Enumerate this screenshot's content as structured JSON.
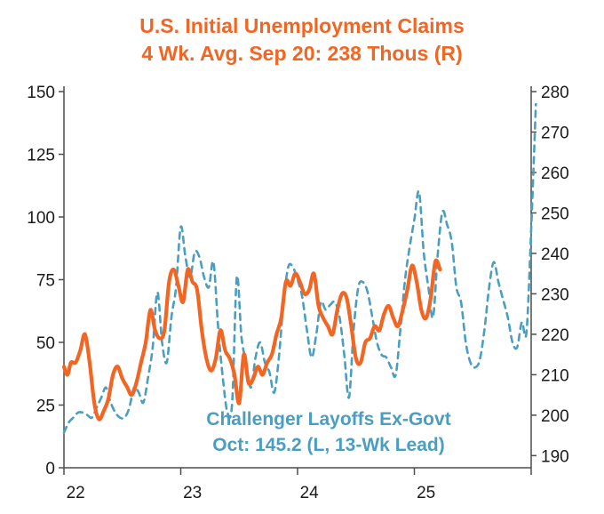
{
  "chart_data": {
    "type": "line",
    "title": "U.S. Initial Unemployment Claims",
    "subtitle": "4 Wk. Avg.  Sep 20: 238 Thous (R)",
    "annotation": {
      "line1": "Challenger Layoffs Ex-Govt",
      "line2": "Oct: 145.2 (L, 13-Wk Lead)"
    },
    "x_axis": {
      "ticks": [
        "22",
        "23",
        "24",
        "25"
      ],
      "xlim": [
        2022.0,
        2026.0
      ]
    },
    "y_left": {
      "ylim": [
        0,
        150
      ],
      "ticks": [
        0,
        25,
        50,
        75,
        100,
        125,
        150
      ]
    },
    "y_right": {
      "ylim": [
        187,
        280
      ],
      "ticks": [
        190,
        200,
        210,
        220,
        230,
        240,
        250,
        260,
        270,
        280
      ]
    },
    "series": [
      {
        "name": "Initial Unemployment Claims 4 Wk. Avg. (R)",
        "axis": "right",
        "color": "#f26522",
        "style": "solid",
        "x": [
          2022.0,
          2022.03,
          2022.06,
          2022.1,
          2022.14,
          2022.18,
          2022.22,
          2022.26,
          2022.3,
          2022.34,
          2022.38,
          2022.42,
          2022.46,
          2022.5,
          2022.54,
          2022.58,
          2022.62,
          2022.66,
          2022.7,
          2022.74,
          2022.78,
          2022.82,
          2022.86,
          2022.9,
          2022.94,
          2022.98,
          2023.02,
          2023.06,
          2023.1,
          2023.14,
          2023.18,
          2023.22,
          2023.26,
          2023.3,
          2023.34,
          2023.38,
          2023.42,
          2023.46,
          2023.5,
          2023.54,
          2023.58,
          2023.62,
          2023.66,
          2023.7,
          2023.74,
          2023.78,
          2023.82,
          2023.86,
          2023.9,
          2023.94,
          2023.98,
          2024.02,
          2024.06,
          2024.1,
          2024.14,
          2024.18,
          2024.22,
          2024.26,
          2024.3,
          2024.34,
          2024.38,
          2024.42,
          2024.46,
          2024.5,
          2024.54,
          2024.58,
          2024.62,
          2024.66,
          2024.7,
          2024.74,
          2024.78,
          2024.82,
          2024.86,
          2024.9,
          2024.94,
          2024.98,
          2025.02,
          2025.06,
          2025.1,
          2025.14,
          2025.18,
          2025.22
        ],
        "values": [
          212,
          210,
          213,
          213,
          216,
          220,
          213,
          203,
          199,
          201,
          204,
          210,
          212,
          209,
          207,
          205,
          208,
          213,
          218,
          226,
          221,
          219,
          221,
          233,
          236,
          232,
          228,
          236,
          233,
          231,
          221,
          214,
          211,
          214,
          221,
          216,
          214,
          210,
          203,
          215,
          208,
          209,
          212,
          210,
          213,
          215,
          220,
          224,
          233,
          232,
          235,
          233,
          230,
          231,
          235,
          227,
          224,
          222,
          220,
          226,
          230,
          229,
          222,
          214,
          213,
          218,
          219,
          222,
          221,
          225,
          227,
          224,
          222,
          226,
          231,
          237,
          233,
          226,
          224,
          229,
          238,
          236
        ]
      },
      {
        "name": "Challenger Layoffs Ex-Govt (L, 13-Wk Lead)",
        "axis": "left",
        "color": "#4a9fc0",
        "style": "dashed",
        "x": [
          2022.0,
          2022.04,
          2022.08,
          2022.12,
          2022.16,
          2022.2,
          2022.24,
          2022.28,
          2022.32,
          2022.36,
          2022.4,
          2022.44,
          2022.48,
          2022.52,
          2022.56,
          2022.6,
          2022.64,
          2022.68,
          2022.72,
          2022.76,
          2022.8,
          2022.84,
          2022.88,
          2022.92,
          2022.96,
          2023.0,
          2023.04,
          2023.08,
          2023.12,
          2023.16,
          2023.2,
          2023.24,
          2023.28,
          2023.32,
          2023.36,
          2023.4,
          2023.44,
          2023.48,
          2023.52,
          2023.56,
          2023.6,
          2023.64,
          2023.68,
          2023.72,
          2023.76,
          2023.8,
          2023.84,
          2023.88,
          2023.92,
          2023.96,
          2024.0,
          2024.04,
          2024.08,
          2024.12,
          2024.16,
          2024.2,
          2024.24,
          2024.28,
          2024.32,
          2024.36,
          2024.4,
          2024.44,
          2024.48,
          2024.52,
          2024.56,
          2024.6,
          2024.64,
          2024.68,
          2024.72,
          2024.76,
          2024.8,
          2024.84,
          2024.88,
          2024.92,
          2024.96,
          2025.0,
          2025.04,
          2025.08,
          2025.12,
          2025.16,
          2025.2,
          2025.24,
          2025.28,
          2025.32,
          2025.36,
          2025.4,
          2025.44,
          2025.48,
          2025.52,
          2025.56,
          2025.6,
          2025.64,
          2025.68,
          2025.72,
          2025.76,
          2025.8,
          2025.84,
          2025.88,
          2025.92,
          2025.96,
          2026.0,
          2026.04
        ],
        "values": [
          14,
          18,
          20,
          22,
          22,
          21,
          20,
          24,
          28,
          32,
          26,
          22,
          20,
          20,
          24,
          32,
          30,
          26,
          36,
          48,
          70,
          50,
          42,
          60,
          72,
          96,
          84,
          76,
          86,
          84,
          76,
          72,
          82,
          56,
          36,
          22,
          26,
          76,
          52,
          42,
          32,
          44,
          50,
          42,
          38,
          30,
          44,
          66,
          80,
          80,
          75,
          68,
          55,
          44,
          53,
          66,
          63,
          65,
          66,
          60,
          45,
          28,
          55,
          72,
          74,
          70,
          60,
          50,
          45,
          44,
          40,
          37,
          55,
          75,
          88,
          99,
          110,
          86,
          72,
          60,
          85,
          102,
          97,
          90,
          72,
          66,
          50,
          42,
          40,
          43,
          55,
          72,
          82,
          74,
          67,
          60,
          50,
          48,
          58,
          54,
          95,
          145
        ]
      }
    ]
  }
}
